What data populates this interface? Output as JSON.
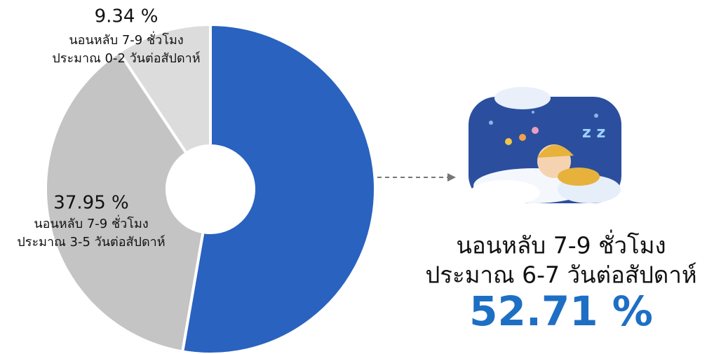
{
  "chart_data": {
    "type": "donut",
    "categories": [
      [
        "นอนหลับ 7-9 ชั่วโมง",
        "ประมาณ 6-7 วันต่อสัปดาห์"
      ],
      [
        "นอนหลับ 7-9 ชั่วโมง",
        "ประมาณ 3-5 วันต่อสัปดาห์"
      ],
      [
        "นอนหลับ 7-9 ชั่วโมง",
        "ประมาณ 0-2 วันต่อสัปดาห์"
      ]
    ],
    "values": [
      52.71,
      37.95,
      9.34
    ],
    "value_labels": [
      "52.71 %",
      "37.95 %",
      "9.34 %"
    ],
    "colors": [
      "#2a62bf",
      "#c4c4c4",
      "#dcdcdc"
    ]
  }
}
